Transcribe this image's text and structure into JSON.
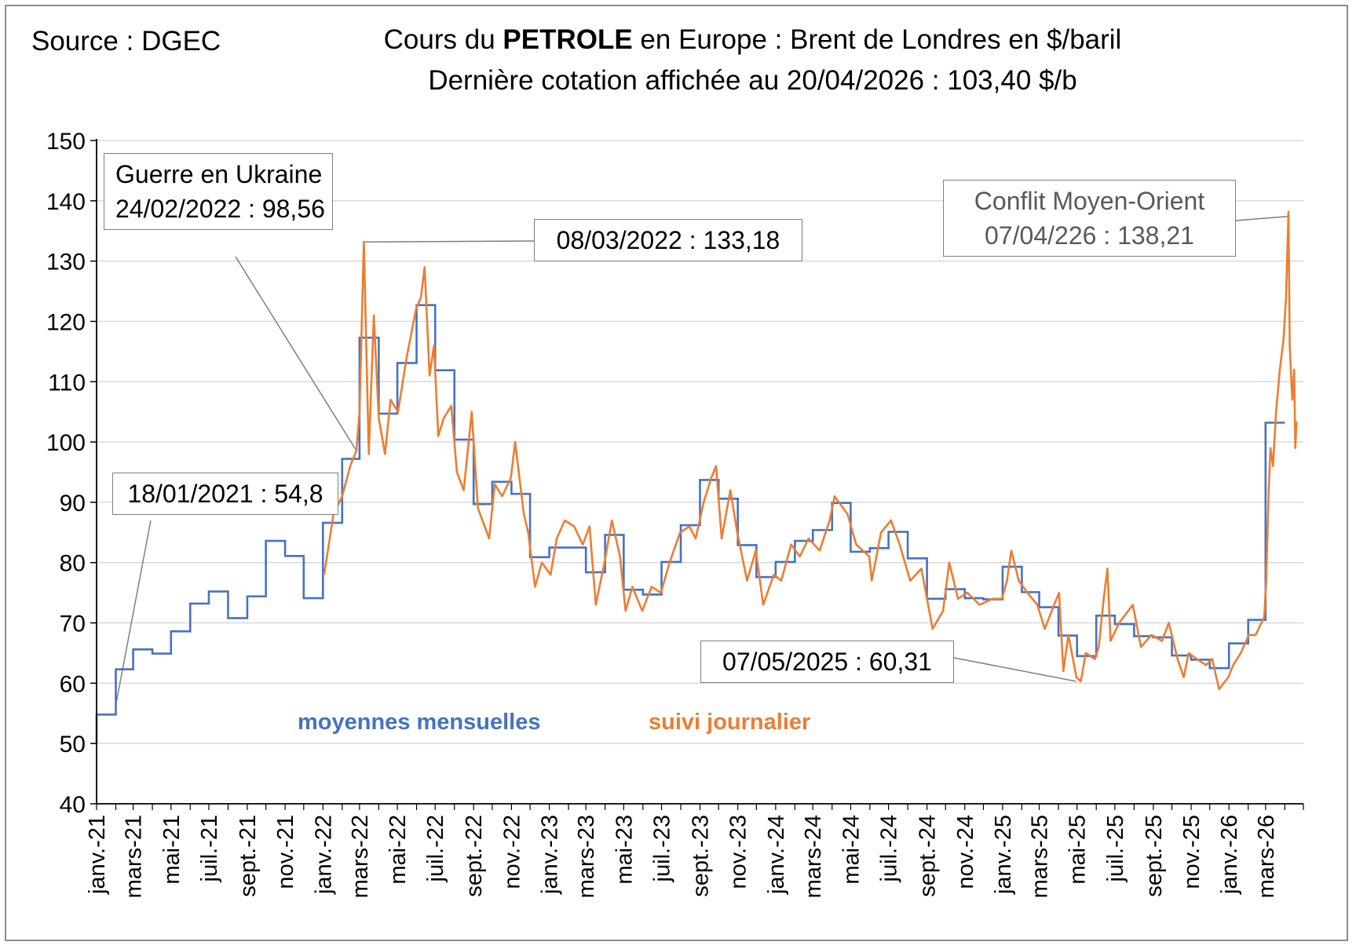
{
  "header": {
    "source": "Source : DGEC",
    "title_prefix": "Cours du ",
    "title_bold": "PETROLE",
    "title_suffix": " en Europe : Brent de Londres en $/baril",
    "subtitle": "Dernière cotation affichée au 20/04/2026 : 103,40 $/b"
  },
  "legend": {
    "monthly": "moyennes mensuelles",
    "daily": "suivi journalier"
  },
  "annotations": {
    "jan2021": "18/01/2021 : 54,8",
    "ukraine_line1": "Guerre en Ukraine",
    "ukraine_line2": "24/02/2022 : 98,56",
    "mar2022": "08/03/2022 : 133,18",
    "middle_east_line1": "Conflit Moyen-Orient",
    "middle_east_line2": "07/04/226 : 138,21",
    "may2025": "07/05/2025 : 60,31"
  },
  "colors": {
    "monthly": "#4472c4",
    "daily": "#ed7d31",
    "grid": "#d9d9d9",
    "axis": "#000000",
    "annotation_border": "#7f7f7f"
  },
  "chart_data": {
    "type": "line",
    "ylim": [
      40,
      150
    ],
    "yticks": [
      40,
      50,
      60,
      70,
      80,
      90,
      100,
      110,
      120,
      130,
      140,
      150
    ],
    "grid": "horizontal",
    "x_tick_labels": [
      "janv.-21",
      "mars-21",
      "mai-21",
      "juil.-21",
      "sept.-21",
      "nov.-21",
      "janv.-22",
      "mars-22",
      "mai-22",
      "juil.-22",
      "sept.-22",
      "nov.-22",
      "janv.-23",
      "mars-23",
      "mai-23",
      "juil.-23",
      "sept.-23",
      "nov.-23",
      "janv.-24",
      "mars-24",
      "mai-24",
      "juil.-24",
      "sept.-24",
      "nov.-24",
      "janv.-25",
      "mars-25",
      "mai-25",
      "juil.-25",
      "sept.-25",
      "nov.-25",
      "janv.-26",
      "mars-26"
    ],
    "series": [
      {
        "name": "moyennes mensuelles",
        "style": "step",
        "color": "#4472c4",
        "months": [
          "2021-01",
          "2021-02",
          "2021-03",
          "2021-04",
          "2021-05",
          "2021-06",
          "2021-07",
          "2021-08",
          "2021-09",
          "2021-10",
          "2021-11",
          "2021-12",
          "2022-01",
          "2022-02",
          "2022-03",
          "2022-04",
          "2022-05",
          "2022-06",
          "2022-07",
          "2022-08",
          "2022-09",
          "2022-10",
          "2022-11",
          "2022-12",
          "2023-01",
          "2023-02",
          "2023-03",
          "2023-04",
          "2023-05",
          "2023-06",
          "2023-07",
          "2023-08",
          "2023-09",
          "2023-10",
          "2023-11",
          "2023-12",
          "2024-01",
          "2024-02",
          "2024-03",
          "2024-04",
          "2024-05",
          "2024-06",
          "2024-07",
          "2024-08",
          "2024-09",
          "2024-10",
          "2024-11",
          "2024-12",
          "2025-01",
          "2025-02",
          "2025-03",
          "2025-04",
          "2025-05",
          "2025-06",
          "2025-07",
          "2025-08",
          "2025-09",
          "2025-10",
          "2025-11",
          "2025-12",
          "2026-01",
          "2026-02",
          "2026-03",
          "2026-04"
        ],
        "values": [
          54.8,
          62.3,
          65.6,
          64.9,
          68.6,
          73.2,
          75.2,
          70.8,
          74.4,
          83.6,
          81.1,
          74.1,
          86.6,
          97.2,
          117.3,
          104.7,
          113.1,
          122.7,
          111.9,
          100.4,
          89.7,
          93.4,
          91.4,
          80.9,
          82.5,
          82.5,
          78.4,
          84.6,
          75.5,
          74.7,
          80.1,
          86.2,
          93.7,
          90.6,
          82.9,
          77.6,
          80.1,
          83.6,
          85.4,
          89.9,
          81.8,
          82.4,
          85.1,
          80.7,
          74.0,
          75.6,
          74.1,
          73.9,
          79.3,
          75.1,
          72.6,
          67.9,
          64.5,
          71.2,
          69.8,
          67.8,
          67.6,
          64.6,
          63.9,
          62.5,
          66.6,
          70.5,
          103.2,
          103.2
        ]
      },
      {
        "name": "suivi journalier",
        "style": "line",
        "color": "#ed7d31",
        "anchors": [
          [
            "2022-01-03",
            78
          ],
          [
            "2022-01-18",
            88
          ],
          [
            "2022-02-01",
            91
          ],
          [
            "2022-02-14",
            96
          ],
          [
            "2022-02-24",
            98.56
          ],
          [
            "2022-03-01",
            105
          ],
          [
            "2022-03-08",
            133.18
          ],
          [
            "2022-03-16",
            98
          ],
          [
            "2022-03-24",
            121
          ],
          [
            "2022-04-01",
            104
          ],
          [
            "2022-04-11",
            98
          ],
          [
            "2022-04-20",
            107
          ],
          [
            "2022-05-02",
            105
          ],
          [
            "2022-05-16",
            114
          ],
          [
            "2022-05-31",
            122
          ],
          [
            "2022-06-08",
            124
          ],
          [
            "2022-06-14",
            129
          ],
          [
            "2022-06-22",
            111
          ],
          [
            "2022-06-29",
            116
          ],
          [
            "2022-07-06",
            101
          ],
          [
            "2022-07-15",
            104
          ],
          [
            "2022-07-27",
            106
          ],
          [
            "2022-08-05",
            95
          ],
          [
            "2022-08-16",
            92
          ],
          [
            "2022-08-29",
            105
          ],
          [
            "2022-09-08",
            89
          ],
          [
            "2022-09-26",
            84
          ],
          [
            "2022-10-05",
            93
          ],
          [
            "2022-10-17",
            91
          ],
          [
            "2022-10-31",
            94
          ],
          [
            "2022-11-07",
            100
          ],
          [
            "2022-11-21",
            88
          ],
          [
            "2022-11-28",
            85
          ],
          [
            "2022-12-09",
            76
          ],
          [
            "2022-12-20",
            80
          ],
          [
            "2023-01-03",
            78
          ],
          [
            "2023-01-13",
            84
          ],
          [
            "2023-01-26",
            87
          ],
          [
            "2023-02-10",
            86
          ],
          [
            "2023-02-24",
            83
          ],
          [
            "2023-03-07",
            86
          ],
          [
            "2023-03-17",
            73
          ],
          [
            "2023-03-31",
            80
          ],
          [
            "2023-04-12",
            87
          ],
          [
            "2023-04-25",
            81
          ],
          [
            "2023-05-04",
            72
          ],
          [
            "2023-05-15",
            76
          ],
          [
            "2023-05-31",
            72
          ],
          [
            "2023-06-15",
            76
          ],
          [
            "2023-06-30",
            75
          ],
          [
            "2023-07-14",
            80
          ],
          [
            "2023-07-31",
            85
          ],
          [
            "2023-08-15",
            86
          ],
          [
            "2023-08-25",
            84
          ],
          [
            "2023-09-07",
            90
          ],
          [
            "2023-09-19",
            94
          ],
          [
            "2023-09-27",
            96
          ],
          [
            "2023-10-06",
            84
          ],
          [
            "2023-10-20",
            92
          ],
          [
            "2023-10-31",
            85
          ],
          [
            "2023-11-16",
            77
          ],
          [
            "2023-11-30",
            82
          ],
          [
            "2023-12-12",
            73
          ],
          [
            "2023-12-29",
            78
          ],
          [
            "2024-01-10",
            77
          ],
          [
            "2024-01-26",
            83
          ],
          [
            "2024-02-09",
            81
          ],
          [
            "2024-02-23",
            84
          ],
          [
            "2024-03-12",
            82
          ],
          [
            "2024-03-28",
            87
          ],
          [
            "2024-04-05",
            91
          ],
          [
            "2024-04-12",
            90
          ],
          [
            "2024-04-26",
            88
          ],
          [
            "2024-05-10",
            83
          ],
          [
            "2024-05-31",
            81
          ],
          [
            "2024-06-04",
            77
          ],
          [
            "2024-06-19",
            85
          ],
          [
            "2024-07-05",
            87
          ],
          [
            "2024-07-19",
            83
          ],
          [
            "2024-08-05",
            77
          ],
          [
            "2024-08-23",
            79
          ],
          [
            "2024-09-10",
            69
          ],
          [
            "2024-09-27",
            72
          ],
          [
            "2024-10-07",
            80
          ],
          [
            "2024-10-21",
            74
          ],
          [
            "2024-11-05",
            75
          ],
          [
            "2024-11-25",
            73
          ],
          [
            "2024-12-16",
            74
          ],
          [
            "2024-12-31",
            74
          ],
          [
            "2025-01-08",
            77
          ],
          [
            "2025-01-15",
            82
          ],
          [
            "2025-01-27",
            77
          ],
          [
            "2025-02-10",
            75
          ],
          [
            "2025-02-26",
            73
          ],
          [
            "2025-03-10",
            69
          ],
          [
            "2025-03-25",
            73
          ],
          [
            "2025-04-02",
            75
          ],
          [
            "2025-04-09",
            62
          ],
          [
            "2025-04-17",
            68
          ],
          [
            "2025-04-30",
            61
          ],
          [
            "2025-05-07",
            60.31
          ],
          [
            "2025-05-15",
            65
          ],
          [
            "2025-05-30",
            64
          ],
          [
            "2025-06-05",
            66
          ],
          [
            "2025-06-13",
            74
          ],
          [
            "2025-06-19",
            79
          ],
          [
            "2025-06-24",
            67
          ],
          [
            "2025-07-08",
            70
          ],
          [
            "2025-07-30",
            73
          ],
          [
            "2025-08-12",
            66
          ],
          [
            "2025-08-29",
            68
          ],
          [
            "2025-09-15",
            67
          ],
          [
            "2025-09-26",
            70
          ],
          [
            "2025-10-10",
            64
          ],
          [
            "2025-10-20",
            61
          ],
          [
            "2025-10-28",
            65
          ],
          [
            "2025-11-10",
            64
          ],
          [
            "2025-11-25",
            63
          ],
          [
            "2025-12-05",
            64
          ],
          [
            "2025-12-16",
            59
          ],
          [
            "2025-12-31",
            61
          ],
          [
            "2026-01-08",
            63
          ],
          [
            "2026-01-20",
            65
          ],
          [
            "2026-02-02",
            68
          ],
          [
            "2026-02-13",
            68
          ],
          [
            "2026-02-27",
            71
          ],
          [
            "2026-03-02",
            77
          ],
          [
            "2026-03-06",
            92
          ],
          [
            "2026-03-09",
            99
          ],
          [
            "2026-03-13",
            96
          ],
          [
            "2026-03-18",
            105
          ],
          [
            "2026-03-24",
            112
          ],
          [
            "2026-03-30",
            117
          ],
          [
            "2026-04-03",
            124
          ],
          [
            "2026-04-07",
            138.21
          ],
          [
            "2026-04-09",
            116
          ],
          [
            "2026-04-13",
            107
          ],
          [
            "2026-04-16",
            112
          ],
          [
            "2026-04-18",
            99
          ],
          [
            "2026-04-20",
            103.4
          ]
        ]
      }
    ]
  }
}
